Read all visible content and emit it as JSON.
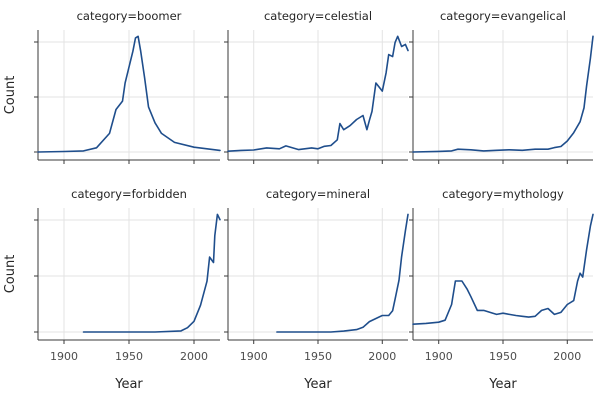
{
  "chart_data": {
    "type": "line",
    "layout": "facet-grid",
    "facet_variable": "category",
    "xlabel": "Year",
    "ylabel": "Count",
    "xlim": [
      1880,
      2020
    ],
    "xticks": [
      1900,
      1950,
      2000
    ],
    "shared_y_rows": true,
    "grid": true,
    "color": "#1f4e8c",
    "facets": [
      {
        "title": "category=boomer",
        "x": [
          1880,
          1900,
          1915,
          1925,
          1935,
          1940,
          1945,
          1947,
          1950,
          1953,
          1955,
          1957,
          1959,
          1962,
          1965,
          1970,
          1975,
          1985,
          2000,
          2020
        ],
        "y": [
          0.0,
          0.01,
          0.02,
          0.08,
          0.35,
          0.8,
          0.96,
          1.3,
          1.6,
          1.9,
          2.15,
          2.18,
          1.9,
          1.4,
          0.85,
          0.55,
          0.35,
          0.18,
          0.09,
          0.03
        ]
      },
      {
        "title": "category=celestial",
        "x": [
          1880,
          1890,
          1900,
          1910,
          1920,
          1925,
          1935,
          1945,
          1950,
          1955,
          1960,
          1965,
          1967,
          1970,
          1975,
          1980,
          1985,
          1988,
          1990,
          1992,
          1995,
          2000,
          2003,
          2005,
          2008,
          2010,
          2012,
          2015,
          2018,
          2020
        ],
        "y": [
          0.02,
          0.04,
          0.05,
          0.1,
          0.08,
          0.15,
          0.06,
          0.1,
          0.08,
          0.14,
          0.16,
          0.3,
          0.7,
          0.55,
          0.65,
          0.8,
          0.9,
          0.55,
          0.78,
          1.0,
          1.7,
          1.5,
          1.95,
          2.4,
          2.35,
          2.7,
          2.85,
          2.6,
          2.65,
          2.5
        ]
      },
      {
        "title": "category=evangelical",
        "x": [
          1880,
          1900,
          1910,
          1915,
          1925,
          1935,
          1945,
          1955,
          1965,
          1975,
          1985,
          1990,
          1995,
          2000,
          2005,
          2010,
          2013,
          2015,
          2018,
          2020
        ],
        "y": [
          0.0,
          0.01,
          0.02,
          0.05,
          0.04,
          0.02,
          0.03,
          0.04,
          0.03,
          0.05,
          0.05,
          0.08,
          0.1,
          0.2,
          0.35,
          0.55,
          0.8,
          1.2,
          1.7,
          2.1
        ]
      },
      {
        "title": "category=forbidden",
        "x": [
          1915,
          1930,
          1950,
          1970,
          1990,
          1995,
          2000,
          2005,
          2010,
          2012,
          2015,
          2016,
          2018,
          2020
        ],
        "y": [
          0.0,
          0.0,
          0.0,
          0.0,
          0.02,
          0.08,
          0.2,
          0.5,
          0.95,
          1.4,
          1.3,
          1.8,
          2.2,
          2.1
        ]
      },
      {
        "title": "category=mineral",
        "x": [
          1918,
          1940,
          1960,
          1970,
          1980,
          1985,
          1990,
          2000,
          2005,
          2008,
          2010,
          2013,
          2015,
          2018,
          2020
        ],
        "y": [
          0.0,
          0.0,
          0.0,
          0.02,
          0.05,
          0.1,
          0.22,
          0.35,
          0.35,
          0.45,
          0.7,
          1.1,
          1.6,
          2.15,
          2.5
        ]
      },
      {
        "title": "category=mythology",
        "x": [
          1880,
          1890,
          1900,
          1905,
          1910,
          1913,
          1918,
          1922,
          1925,
          1930,
          1935,
          1940,
          1945,
          1950,
          1955,
          1960,
          1965,
          1970,
          1975,
          1980,
          1985,
          1990,
          1995,
          2000,
          2005,
          2008,
          2010,
          2012,
          2015,
          2018,
          2020
        ],
        "y": [
          0.2,
          0.22,
          0.25,
          0.3,
          0.7,
          1.3,
          1.3,
          1.1,
          0.9,
          0.55,
          0.55,
          0.5,
          0.45,
          0.48,
          0.45,
          0.42,
          0.4,
          0.38,
          0.4,
          0.55,
          0.6,
          0.45,
          0.5,
          0.7,
          0.8,
          1.3,
          1.5,
          1.4,
          2.1,
          2.7,
          3.0
        ]
      }
    ]
  }
}
